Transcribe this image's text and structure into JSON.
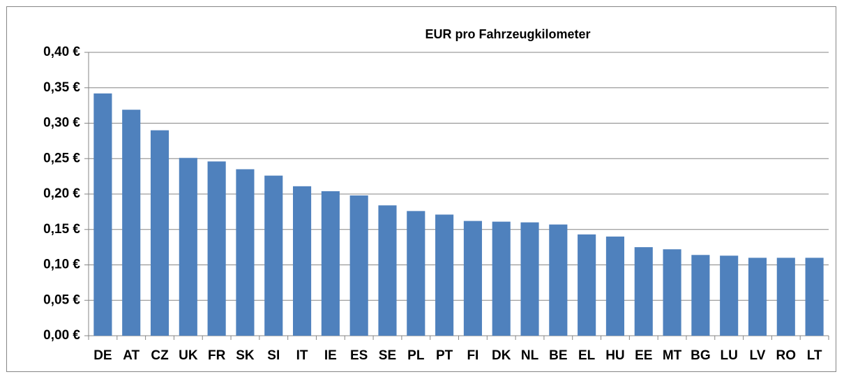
{
  "chart_data": {
    "type": "bar",
    "title": "EUR pro Fahrzeugkilometer",
    "categories": [
      "DE",
      "AT",
      "CZ",
      "UK",
      "FR",
      "SK",
      "SI",
      "IT",
      "IE",
      "ES",
      "SE",
      "PL",
      "PT",
      "FI",
      "DK",
      "NL",
      "BE",
      "EL",
      "HU",
      "EE",
      "MT",
      "BG",
      "LU",
      "LV",
      "RO",
      "LT"
    ],
    "values": [
      0.342,
      0.319,
      0.29,
      0.251,
      0.246,
      0.235,
      0.226,
      0.211,
      0.204,
      0.198,
      0.184,
      0.176,
      0.171,
      0.162,
      0.161,
      0.16,
      0.157,
      0.143,
      0.14,
      0.125,
      0.122,
      0.114,
      0.113,
      0.11,
      0.11,
      0.11
    ],
    "color": "#4f81bd",
    "ylim": [
      0,
      0.4
    ],
    "yticks": [
      {
        "value": 0,
        "label": "0,00 €"
      },
      {
        "value": 0.05,
        "label": "0,05 €"
      },
      {
        "value": 0.1,
        "label": "0,10 €"
      },
      {
        "value": 0.15,
        "label": "0,15 €"
      },
      {
        "value": 0.2,
        "label": "0,20 €"
      },
      {
        "value": 0.25,
        "label": "0,25 €"
      },
      {
        "value": 0.3,
        "label": "0,30 €"
      },
      {
        "value": 0.35,
        "label": "0,35 €"
      },
      {
        "value": 0.4,
        "label": "0,40 €"
      }
    ],
    "grid": true
  }
}
